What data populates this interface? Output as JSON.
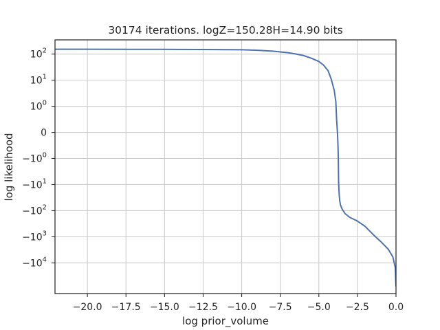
{
  "chart_data": {
    "type": "line",
    "title": "30174 iterations. logZ=150.28H=14.90 bits",
    "xlabel": "log prior_volume",
    "ylabel": "log likelihood",
    "xlim": [
      -22.1,
      0.0
    ],
    "yscale": "symlog",
    "ylim": [
      -150000,
      350
    ],
    "grid": true,
    "legend": "none",
    "x_ticks": [
      {
        "value": -20.0,
        "label": "−20.0"
      },
      {
        "value": -17.5,
        "label": "−17.5"
      },
      {
        "value": -15.0,
        "label": "−15.0"
      },
      {
        "value": -12.5,
        "label": "−12.5"
      },
      {
        "value": -10.0,
        "label": "−10.0"
      },
      {
        "value": -7.5,
        "label": "−7.5"
      },
      {
        "value": -5.0,
        "label": "−5.0"
      },
      {
        "value": -2.5,
        "label": "−2.5"
      },
      {
        "value": 0.0,
        "label": "0.0"
      }
    ],
    "y_ticks": [
      {
        "value": 100,
        "base": "10",
        "exp": "2",
        "sign": ""
      },
      {
        "value": 10,
        "base": "10",
        "exp": "1",
        "sign": ""
      },
      {
        "value": 1,
        "base": "10",
        "exp": "0",
        "sign": ""
      },
      {
        "value": 0,
        "base": "0",
        "exp": "",
        "sign": ""
      },
      {
        "value": -1,
        "base": "10",
        "exp": "0",
        "sign": "−"
      },
      {
        "value": -10,
        "base": "10",
        "exp": "1",
        "sign": "−"
      },
      {
        "value": -100,
        "base": "10",
        "exp": "2",
        "sign": "−"
      },
      {
        "value": -1000,
        "base": "10",
        "exp": "3",
        "sign": "−"
      },
      {
        "value": -10000,
        "base": "10",
        "exp": "4",
        "sign": "−"
      }
    ],
    "series": [
      {
        "color": "#4c72b0",
        "x": [
          -22.1,
          -20.0,
          -17.5,
          -15.0,
          -12.5,
          -10.0,
          -9.0,
          -8.0,
          -7.0,
          -6.5,
          -6.0,
          -5.5,
          -5.0,
          -4.7,
          -4.4,
          -4.2,
          -4.0,
          -3.9,
          -3.85,
          -3.8,
          -3.78,
          -3.76,
          -3.74,
          -3.73,
          -3.72,
          -3.7,
          -3.68,
          -3.65,
          -3.6,
          -3.5,
          -3.3,
          -3.0,
          -2.5,
          -2.0,
          -1.5,
          -1.0,
          -0.5,
          -0.2,
          -0.05,
          0.0
        ],
        "y": [
          153,
          153,
          152.5,
          151.5,
          150,
          146,
          140,
          130,
          113,
          101,
          88,
          70,
          52,
          38,
          23,
          11,
          4,
          1.5,
          0.5,
          0.05,
          -0.2,
          -0.5,
          -1.0,
          -3,
          -8,
          -15,
          -25,
          -40,
          -60,
          -85,
          -130,
          -180,
          -250,
          -400,
          -800,
          -1500,
          -3000,
          -6000,
          -15000,
          -80000
        ]
      }
    ]
  }
}
